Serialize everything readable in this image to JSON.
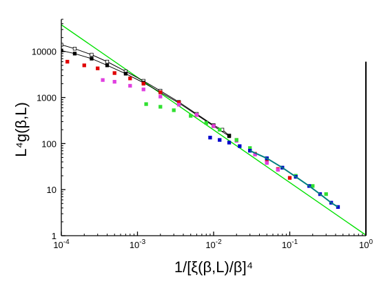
{
  "chart_data": {
    "type": "scatter",
    "title": "",
    "xlabel": "1/[ξ(β,L)/β]⁴",
    "ylabel": "L⁴g(β,L)",
    "xscale": "log",
    "yscale": "log",
    "xlim": [
      0.0001,
      1
    ],
    "ylim": [
      1,
      50000
    ],
    "grid": false,
    "legend": "none",
    "x_ticks": [
      {
        "value": 0.0001,
        "base": "10",
        "exp": "-4"
      },
      {
        "value": 0.001,
        "base": "10",
        "exp": "-3"
      },
      {
        "value": 0.01,
        "base": "10",
        "exp": "-2"
      },
      {
        "value": 0.1,
        "base": "10",
        "exp": "-1"
      },
      {
        "value": 1,
        "base": "10",
        "exp": "0"
      }
    ],
    "y_ticks": [
      {
        "value": 1,
        "label": "1"
      },
      {
        "value": 10,
        "label": "10"
      },
      {
        "value": 100,
        "label": "100"
      },
      {
        "value": 1000,
        "label": "1000"
      },
      {
        "value": 10000,
        "label": "10000"
      }
    ],
    "fit_line": {
      "color": "#00e000",
      "points": [
        [
          0.0001,
          38000
        ],
        [
          1,
          1.03
        ]
      ]
    },
    "vertical_line": {
      "x": 1,
      "y_range": [
        1,
        6000
      ],
      "color": "#000000"
    },
    "series": [
      {
        "color": "#000000",
        "marker": "square-open",
        "connect": true,
        "points": [
          [
            0.0001,
            14000
          ],
          [
            0.00015,
            11500
          ],
          [
            0.00025,
            8500
          ],
          [
            0.0004,
            6000
          ],
          [
            0.0007,
            3700
          ],
          [
            0.0012,
            2300
          ],
          [
            0.002,
            1400
          ],
          [
            0.0035,
            800
          ],
          [
            0.006,
            440
          ],
          [
            0.01,
            250
          ],
          [
            0.013,
            200
          ],
          [
            0.016,
            150
          ]
        ]
      },
      {
        "color": "#000000",
        "marker": "square-filled",
        "connect": true,
        "points": [
          [
            0.0001,
            10500
          ],
          [
            0.00015,
            9000
          ],
          [
            0.00025,
            7000
          ],
          [
            0.0004,
            5000
          ],
          [
            0.0007,
            3300
          ],
          [
            0.0012,
            2100
          ],
          [
            0.002,
            1300
          ],
          [
            0.0035,
            760
          ],
          [
            0.006,
            420
          ],
          [
            0.01,
            240
          ],
          [
            0.016,
            145
          ]
        ]
      },
      {
        "color": "#e00000",
        "marker": "square-filled",
        "connect": false,
        "points": [
          [
            0.00012,
            6000
          ],
          [
            0.0002,
            5000
          ],
          [
            0.0003,
            4300
          ],
          [
            0.0005,
            3400
          ],
          [
            0.0008,
            2600
          ],
          [
            0.0012,
            2000
          ],
          [
            0.002,
            1300
          ],
          [
            0.0035,
            780
          ],
          [
            0.006,
            420
          ],
          [
            0.01,
            240
          ],
          [
            0.02,
            120
          ],
          [
            0.035,
            60
          ],
          [
            0.05,
            40
          ],
          [
            0.07,
            28
          ],
          [
            0.1,
            18
          ]
        ]
      },
      {
        "color": "#e040e0",
        "marker": "square-filled",
        "connect": false,
        "points": [
          [
            0.00035,
            2400
          ],
          [
            0.0005,
            2200
          ],
          [
            0.0008,
            1800
          ],
          [
            0.0012,
            1500
          ],
          [
            0.002,
            1050
          ],
          [
            0.0035,
            700
          ],
          [
            0.006,
            420
          ],
          [
            0.01,
            240
          ],
          [
            0.02,
            115
          ],
          [
            0.035,
            58
          ],
          [
            0.05,
            38
          ],
          [
            0.07,
            27
          ]
        ]
      },
      {
        "color": "#30e030",
        "marker": "square-filled",
        "connect": false,
        "points": [
          [
            0.0013,
            720
          ],
          [
            0.002,
            630
          ],
          [
            0.003,
            530
          ],
          [
            0.005,
            400
          ],
          [
            0.008,
            280
          ],
          [
            0.012,
            200
          ],
          [
            0.02,
            120
          ],
          [
            0.03,
            80
          ],
          [
            0.05,
            48
          ],
          [
            0.08,
            30
          ],
          [
            0.12,
            20
          ],
          [
            0.2,
            12
          ],
          [
            0.3,
            8
          ]
        ]
      },
      {
        "color": "#0000cc",
        "marker": "square-filled",
        "connect": false,
        "points": [
          [
            0.009,
            135
          ],
          [
            0.012,
            120
          ],
          [
            0.016,
            105
          ],
          [
            0.022,
            88
          ],
          [
            0.03,
            70
          ],
          [
            0.05,
            48
          ],
          [
            0.08,
            30
          ],
          [
            0.12,
            19
          ],
          [
            0.18,
            12
          ],
          [
            0.25,
            8
          ],
          [
            0.35,
            5.2
          ],
          [
            0.43,
            4.2
          ]
        ]
      },
      {
        "color": "#008080",
        "marker": "none",
        "connect": true,
        "points": [
          [
            0.03,
            70
          ],
          [
            0.05,
            48
          ],
          [
            0.08,
            30
          ],
          [
            0.12,
            19
          ],
          [
            0.18,
            12
          ],
          [
            0.25,
            8
          ],
          [
            0.35,
            5.2
          ],
          [
            0.43,
            4.2
          ]
        ]
      }
    ]
  }
}
